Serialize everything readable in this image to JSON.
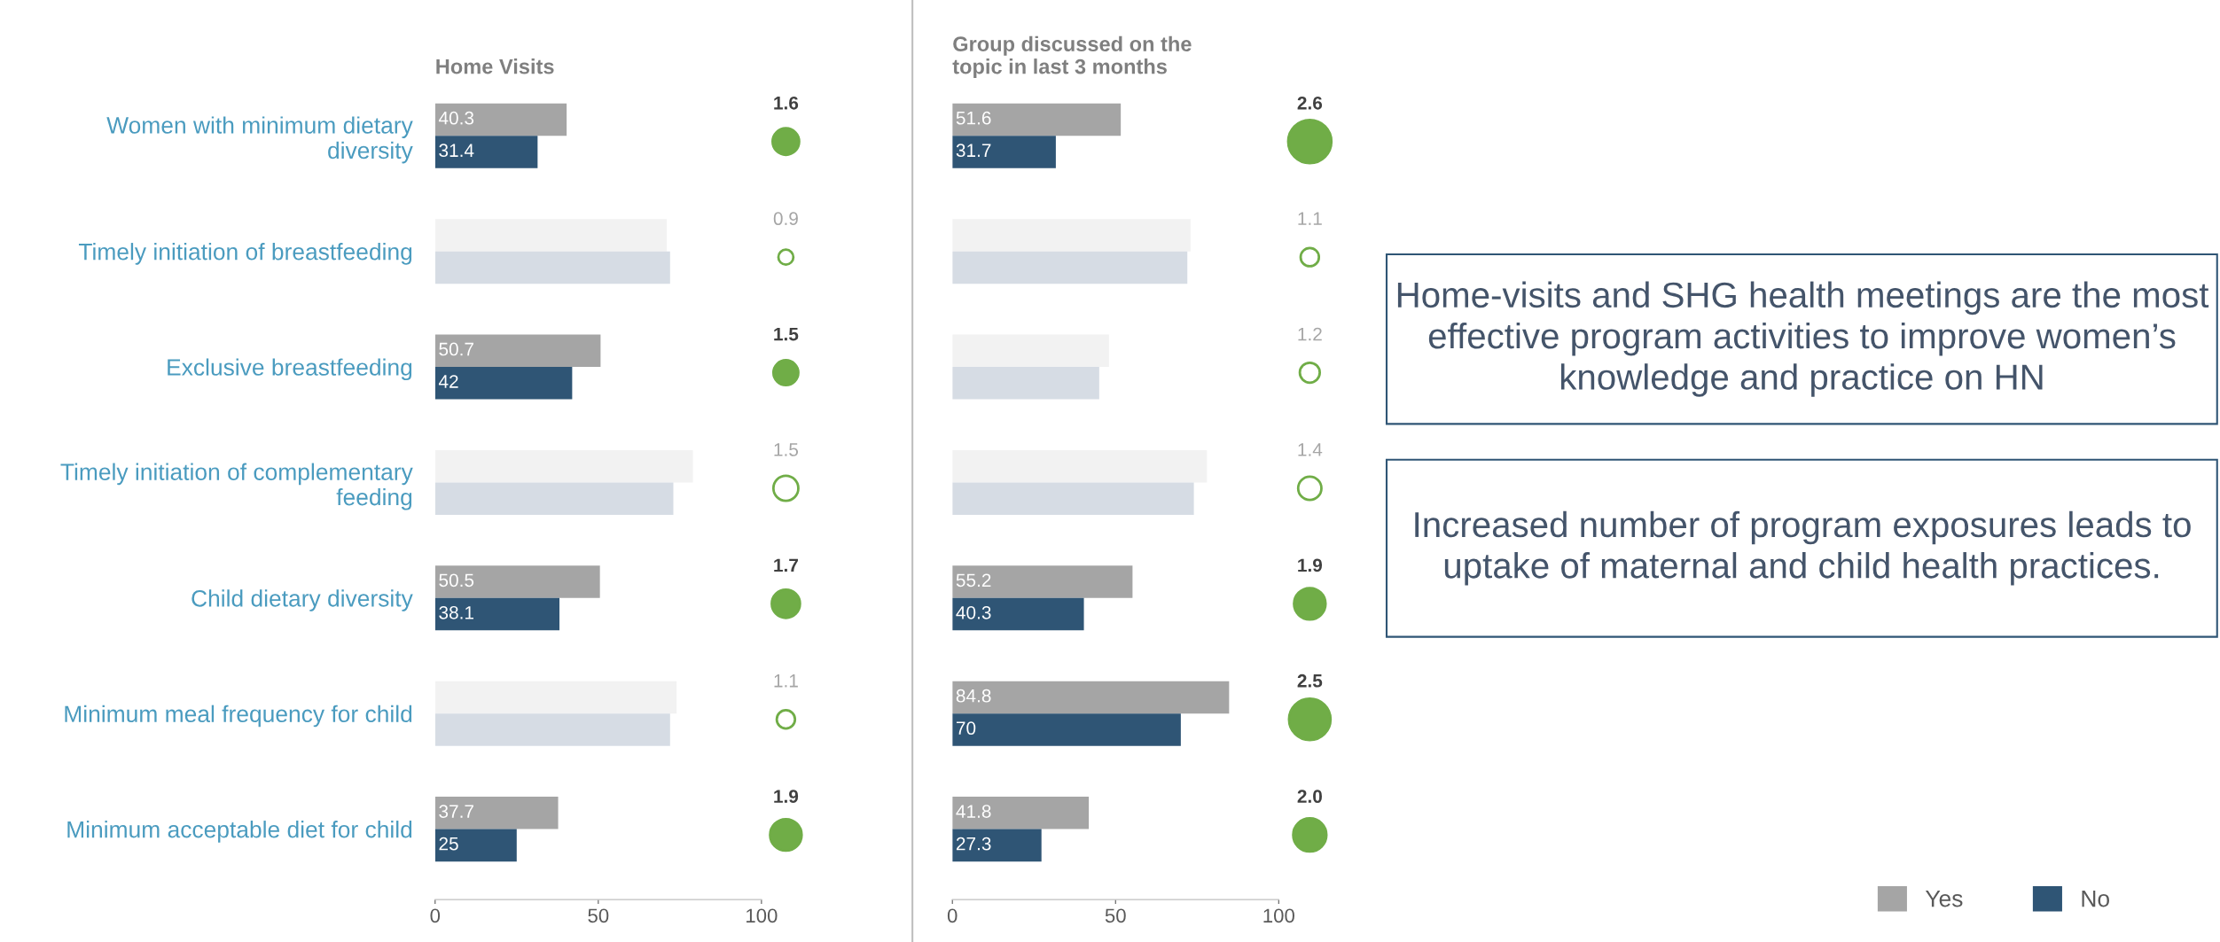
{
  "chart_data": [
    {
      "type": "bar",
      "orientation": "horizontal",
      "title": "Home Visits",
      "categories": [
        "Women with minimum dietary\ndiversity",
        "Timely initiation of breastfeeding",
        "Exclusive breastfeeding",
        "Timely initiation of complementary\nfeeding",
        "Child dietary diversity",
        "Minimum meal frequency for child",
        "Minimum acceptable diet for child"
      ],
      "series": [
        {
          "name": "Yes",
          "color": "#a5a5a5",
          "colors": [
            "#a5a5a5",
            "#f2f2f2",
            "#a5a5a5",
            "#f2f2f2",
            "#a5a5a5",
            "#f2f2f2",
            "#a5a5a5"
          ],
          "values": [
            40.3,
            71,
            50.7,
            79,
            50.5,
            74,
            37.7
          ],
          "value_labels": [
            "40.3",
            null,
            "50.7",
            null,
            "50.5",
            null,
            "37.7"
          ]
        },
        {
          "name": "No",
          "color": "#2f5575",
          "colors": [
            "#2f5575",
            "#d6dce4",
            "#2f5575",
            "#d6dce4",
            "#2f5575",
            "#d6dce4",
            "#2f5575"
          ],
          "values": [
            31.4,
            72,
            42,
            73,
            38.1,
            72,
            25
          ],
          "value_labels": [
            "31.4",
            null,
            "42",
            null,
            "38.1",
            null,
            "25"
          ]
        }
      ],
      "xlim": [
        0,
        100
      ],
      "xticks": [
        0,
        50,
        100
      ],
      "legend": "bottom right"
    },
    {
      "type": "other",
      "color": "#70ad47",
      "values": [
        1.6,
        0.9,
        1.5,
        1.5,
        1.7,
        1.1,
        1.9
      ],
      "value_labels": [
        "1.6",
        "0.9",
        "1.5",
        "1.5",
        "1.7",
        "1.1",
        "1.9"
      ],
      "colors": [
        "#70ad47",
        "#ffffff",
        "#70ad47",
        "#ffffff",
        "#70ad47",
        "#ffffff",
        "#70ad47"
      ]
    },
    {
      "type": "bar",
      "orientation": "horizontal",
      "title": "Group discussed on the\ntopic in last 3 months",
      "categories": [
        null,
        null,
        null,
        null,
        null,
        null,
        null
      ],
      "series": [
        {
          "color": "#a5a5a5",
          "colors": [
            "#a5a5a5",
            "#f2f2f2",
            "#f2f2f2",
            "#f2f2f2",
            "#a5a5a5",
            "#a5a5a5",
            "#a5a5a5"
          ],
          "values": [
            51.6,
            73,
            48,
            78,
            55.2,
            84.8,
            41.8
          ],
          "value_labels": [
            "51.6",
            null,
            null,
            null,
            "55.2",
            "84.8",
            "41.8"
          ]
        },
        {
          "color": "#2f5575",
          "colors": [
            "#2f5575",
            "#d6dce4",
            "#d6dce4",
            "#d6dce4",
            "#2f5575",
            "#2f5575",
            "#2f5575"
          ],
          "values": [
            31.7,
            72,
            45,
            74,
            40.3,
            70,
            27.3
          ],
          "value_labels": [
            "31.7",
            null,
            null,
            null,
            "40.3",
            "70",
            "27.3"
          ]
        }
      ],
      "xlim": [
        0,
        100
      ],
      "xticks": [
        0,
        50,
        100
      ],
      "tick_labels": "x"
    },
    {
      "type": "other",
      "color": "#70ad47",
      "values": [
        2.6,
        1.1,
        1.2,
        1.4,
        1.9,
        2.5,
        2.0
      ],
      "value_labels": [
        "2.6",
        "1.1",
        "1.2",
        "1.4",
        "1.9",
        "2.5",
        "2.0"
      ],
      "colors": [
        "#70ad47",
        "#ffffff",
        "#ffffff",
        "#ffffff",
        "#70ad47",
        "#70ad47",
        "#70ad47"
      ]
    },
    {
      "type": "other",
      "annotations": [
        "Home-visits and SHG health meetings are the most effective program activities to improve women’s knowledge and practice on HN",
        "Increased number of program exposures leads to uptake of maternal and child health practices."
      ]
    }
  ]
}
